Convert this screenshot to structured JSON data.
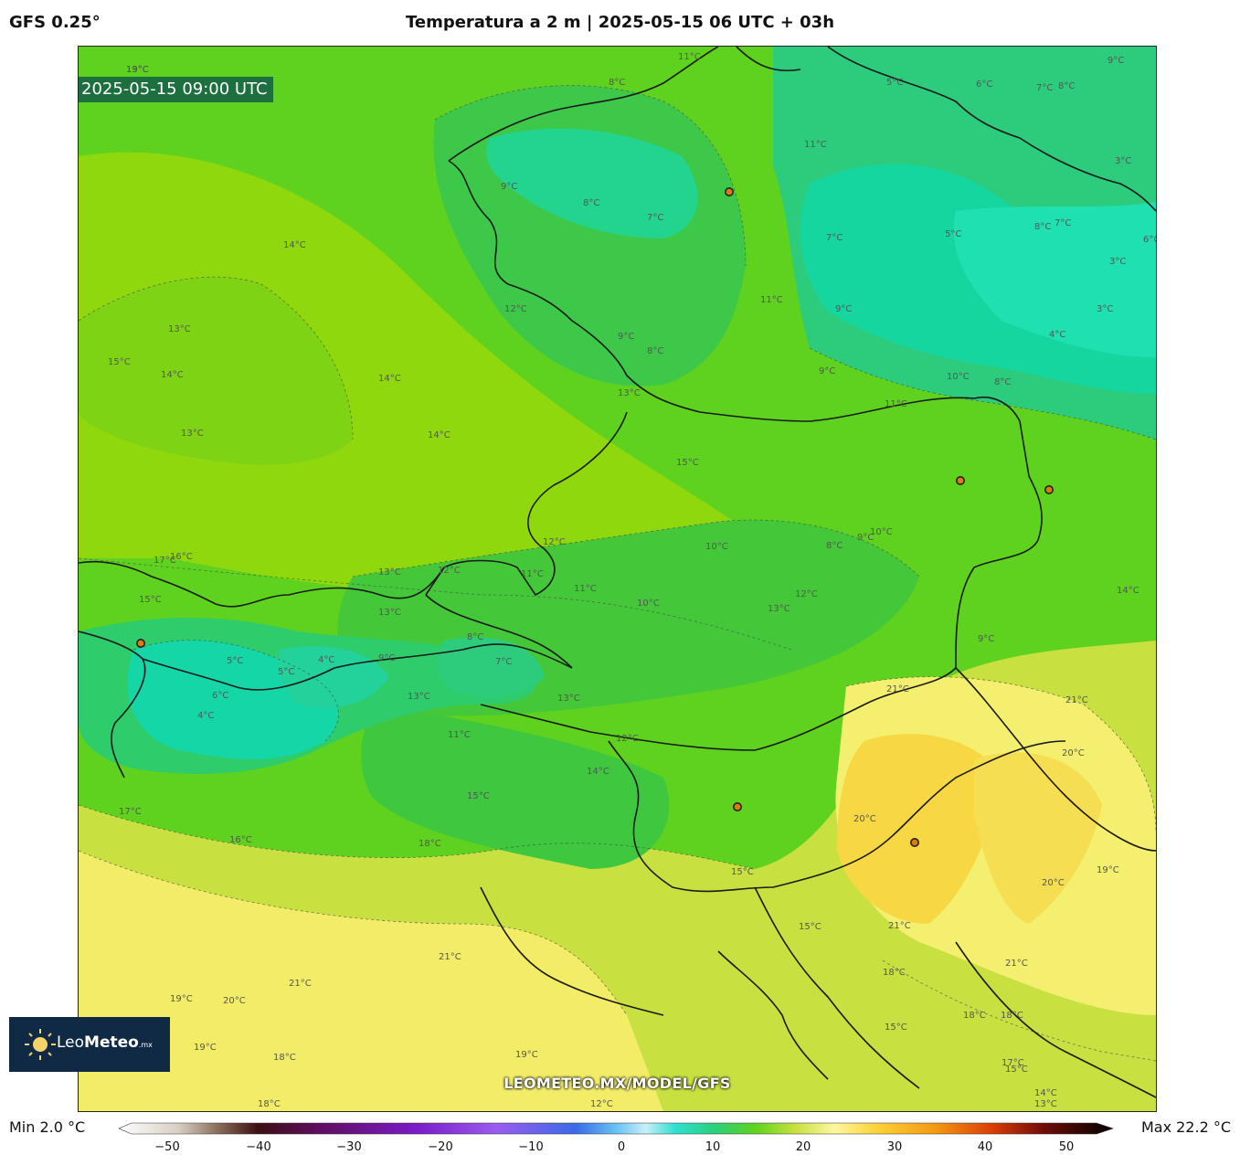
{
  "header": {
    "model": "GFS 0.25°",
    "title": "Temperatura a 2 m | 2025-05-15 06 UTC + 03h"
  },
  "map": {
    "valid_time": "2025-05-15 09:00 UTC",
    "watermark": "LEOMETEO.MX/MODEL/GFS",
    "contour_labels": [
      "13°C",
      "11°C",
      "8°C",
      "5°C",
      "6°C",
      "7°C",
      "8°C",
      "9°C",
      "11°C",
      "3°C",
      "9°C",
      "8°C",
      "7°C",
      "7°C",
      "5°C",
      "6°C",
      "8°C",
      "7°C",
      "3°C",
      "14°C",
      "12°C",
      "11°C",
      "9°C",
      "3°C",
      "13°C",
      "9°C",
      "8°C",
      "4°C",
      "15°C",
      "14°C",
      "14°C",
      "9°C",
      "10°C",
      "8°C",
      "13°C",
      "11°C",
      "13°C",
      "14°C",
      "15°C",
      "17°C",
      "16°C",
      "10°C",
      "8°C",
      "9°C",
      "15°C",
      "12°C",
      "13°C",
      "12°C",
      "11°C",
      "10°C",
      "11°C",
      "10°C",
      "13°C",
      "12°C",
      "14°C",
      "13°C",
      "8°C",
      "7°C",
      "9°C",
      "5°C",
      "4°C",
      "5°C",
      "6°C",
      "4°C",
      "9°C",
      "13°C",
      "13°C",
      "11°C",
      "21°C",
      "21°C",
      "20°C",
      "12°C",
      "14°C",
      "15°C",
      "17°C",
      "16°C",
      "18°C",
      "20°C",
      "19°C",
      "21°C",
      "20°C",
      "21°C",
      "19°C",
      "15°C",
      "15°C",
      "21°C",
      "21°C",
      "18°C",
      "19°C",
      "20°C",
      "21°C",
      "18°C",
      "19°C",
      "18°C",
      "18°C",
      "15°C",
      "17°C",
      "15°C",
      "14°C",
      "13°C",
      "12°C",
      "18°C",
      "19°C"
    ],
    "cities": [
      "city-1",
      "city-2",
      "city-3",
      "city-4",
      "city-5",
      "city-6"
    ],
    "colors": {
      "cold": "#13d9a4",
      "cool": "#35c96e",
      "mild": "#5ed21e",
      "lime": "#8fd80e",
      "yellowgreen": "#c8e040",
      "yellow": "#f4ef6e",
      "warm": "#f7d844"
    }
  },
  "logo": {
    "brand_prefix": "Leo",
    "brand_bold": "Meteo",
    "brand_suffix": ".mx"
  },
  "colorbar": {
    "min_label": "Min 2.0 °C",
    "max_label": "Max 22.2 °C",
    "ticks": [
      "−50",
      "−40",
      "−30",
      "−20",
      "−10",
      "0",
      "10",
      "20",
      "30",
      "40",
      "50"
    ]
  }
}
